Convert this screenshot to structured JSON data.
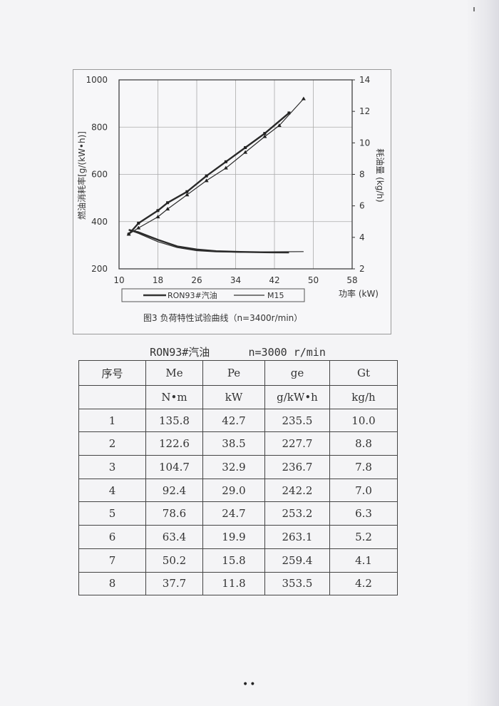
{
  "figure": {
    "caption": "图3 负荷特性试验曲线（n=3400r/min）",
    "y_left_label": "燃油消耗率[g/(kW•h)]",
    "y_right_label": "耗油量 (kg/h)",
    "x_label": "功率 (kW)",
    "legend": [
      "RON93#汽油",
      "M15"
    ],
    "x_ticks": [
      "10",
      "18",
      "26",
      "34",
      "42",
      "50",
      "58"
    ],
    "y_left_ticks": [
      "200",
      "400",
      "600",
      "800",
      "1000"
    ],
    "y_right_ticks": [
      "2",
      "4",
      "6",
      "8",
      "10",
      "12",
      "14"
    ]
  },
  "chart_data": {
    "type": "line",
    "x_axis": {
      "label": "功率 (kW)",
      "range": [
        10,
        58
      ],
      "ticks": [
        10,
        18,
        26,
        34,
        42,
        50,
        58
      ]
    },
    "y_left_axis": {
      "label": "燃油消耗率[g/(kW•h)]",
      "range": [
        200,
        1000
      ],
      "ticks": [
        200,
        400,
        600,
        800,
        1000
      ]
    },
    "y_right_axis": {
      "label": "耗油量 (kg/h)",
      "range": [
        2,
        14
      ],
      "ticks": [
        2,
        4,
        6,
        8,
        10,
        12,
        14
      ]
    },
    "grid": true,
    "legend_position": "bottom",
    "series": [
      {
        "name": "RON93#汽油",
        "axis": "right",
        "x": [
          12,
          14,
          18,
          20,
          24,
          28,
          32,
          36,
          40,
          45
        ],
        "y": [
          4.2,
          4.9,
          5.7,
          6.2,
          6.9,
          7.9,
          8.8,
          9.7,
          10.6,
          11.9
        ]
      },
      {
        "name": "M15",
        "axis": "right",
        "x": [
          12,
          14,
          18,
          20,
          24,
          28,
          32,
          36,
          40,
          43,
          48
        ],
        "y": [
          4.2,
          4.6,
          5.3,
          5.8,
          6.7,
          7.6,
          8.4,
          9.4,
          10.4,
          11.1,
          12.8
        ]
      },
      {
        "name": "RON93#汽油",
        "axis": "left",
        "x": [
          12,
          14,
          18,
          22,
          26,
          30,
          35,
          40,
          45
        ],
        "y": [
          365,
          355,
          323,
          295,
          282,
          275,
          272,
          270,
          269
        ]
      },
      {
        "name": "M15",
        "axis": "left",
        "x": [
          12,
          14,
          18,
          22,
          26,
          30,
          35,
          40,
          48
        ],
        "y": [
          365,
          350,
          315,
          290,
          277,
          272,
          270,
          272,
          273
        ]
      }
    ]
  },
  "table": {
    "title": "RON93#汽油      n=3000 r/min",
    "header": [
      "序号",
      "Me",
      "Pe",
      "ge",
      "Gt"
    ],
    "units": [
      "",
      "N•m",
      "kW",
      "g/kW•h",
      "kg/h"
    ],
    "rows": [
      [
        "1",
        "135.8",
        "42.7",
        "235.5",
        "10.0"
      ],
      [
        "2",
        "122.6",
        "38.5",
        "227.7",
        "8.8"
      ],
      [
        "3",
        "104.7",
        "32.9",
        "236.7",
        "7.8"
      ],
      [
        "4",
        "92.4",
        "29.0",
        "242.2",
        "7.0"
      ],
      [
        "5",
        "78.6",
        "24.7",
        "253.2",
        "6.3"
      ],
      [
        "6",
        "63.4",
        "19.9",
        "263.1",
        "5.2"
      ],
      [
        "7",
        "50.2",
        "15.8",
        "259.4",
        "4.1"
      ],
      [
        "8",
        "37.7",
        "11.8",
        "353.5",
        "4.2"
      ]
    ]
  },
  "footer": {
    "mark": "••"
  }
}
